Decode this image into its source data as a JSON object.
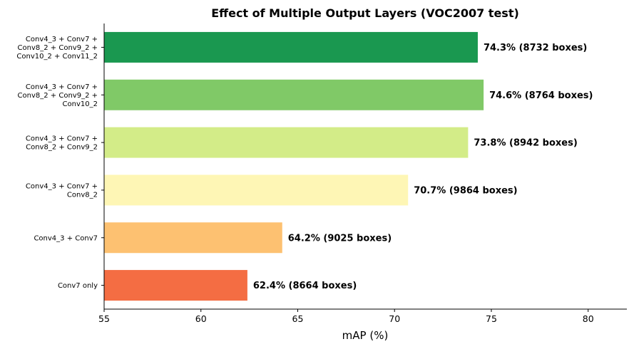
{
  "chart_data": {
    "type": "bar",
    "orientation": "horizontal",
    "title": "Effect of Multiple Output Layers (VOC2007 test)",
    "xlabel": "mAP (%)",
    "ylabel": "",
    "xlim": [
      55,
      82
    ],
    "xticks": [
      55,
      60,
      65,
      70,
      75,
      80
    ],
    "xtick_labels": [
      "55",
      "60",
      "65",
      "70",
      "75",
      "80"
    ],
    "grid": false,
    "categories": [
      [
        "Conv7 only"
      ],
      [
        "Conv4_3 + Conv7"
      ],
      [
        "Conv4_3 + Conv7 +",
        "Conv8_2"
      ],
      [
        "Conv4_3 + Conv7 +",
        "Conv8_2 + Conv9_2"
      ],
      [
        "Conv4_3 + Conv7 +",
        "Conv8_2 + Conv9_2 +",
        "Conv10_2"
      ],
      [
        "Conv4_3 + Conv7 +",
        "Conv8_2 + Conv9_2 +",
        "Conv10_2 + Conv11_2"
      ]
    ],
    "values": [
      62.4,
      64.2,
      70.7,
      73.8,
      74.6,
      74.3
    ],
    "data_labels": [
      "62.4% (8664 boxes)",
      "64.2% (9025 boxes)",
      "70.7% (9864 boxes)",
      "73.8% (8942 boxes)",
      "74.6% (8764 boxes)",
      "74.3% (8732 boxes)"
    ],
    "colors": [
      "#f46d43",
      "#fdc171",
      "#fef6b5",
      "#d3ec88",
      "#80c967",
      "#1a9850"
    ]
  }
}
